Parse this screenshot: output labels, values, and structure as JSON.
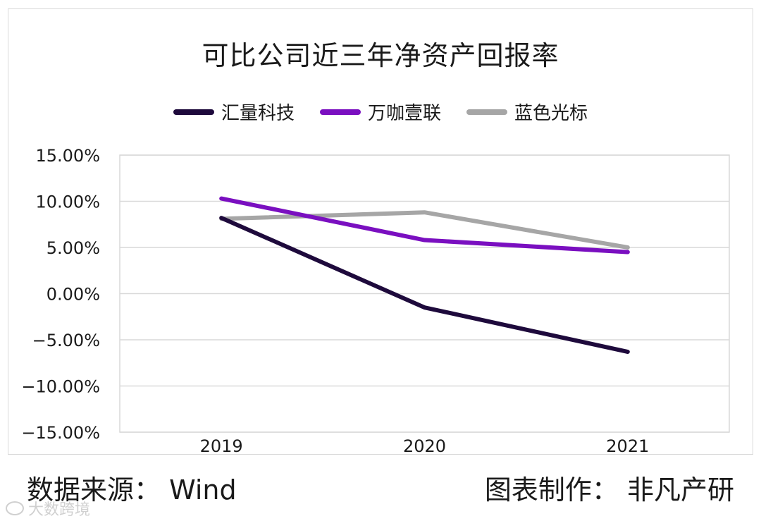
{
  "chart_data": {
    "type": "line",
    "title": "可比公司近三年净资产回报率",
    "categories": [
      "2019",
      "2020",
      "2021"
    ],
    "series": [
      {
        "name": "汇量科技",
        "color": "#1e0a3c",
        "values": [
          8.2,
          -1.5,
          -6.3
        ]
      },
      {
        "name": "万咖壹联",
        "color": "#7a0fc0",
        "values": [
          10.3,
          5.8,
          4.5
        ]
      },
      {
        "name": "蓝色光标",
        "color": "#a6a6a6",
        "values": [
          8.1,
          8.8,
          5.0
        ]
      }
    ],
    "ylim": [
      -15,
      15
    ],
    "yticks": [
      15,
      10,
      5,
      0,
      -5,
      -10,
      -15
    ],
    "ytick_labels": [
      "15.00%",
      "10.00%",
      "5.00%",
      "0.00%",
      "−5.00%",
      "−10.00%",
      "−15.00%"
    ],
    "grid": true,
    "legend": "top"
  },
  "footer": {
    "source": "数据来源： Wind",
    "credit": "图表制作： 非凡产研"
  },
  "watermark": {
    "text": "大数跨境"
  }
}
